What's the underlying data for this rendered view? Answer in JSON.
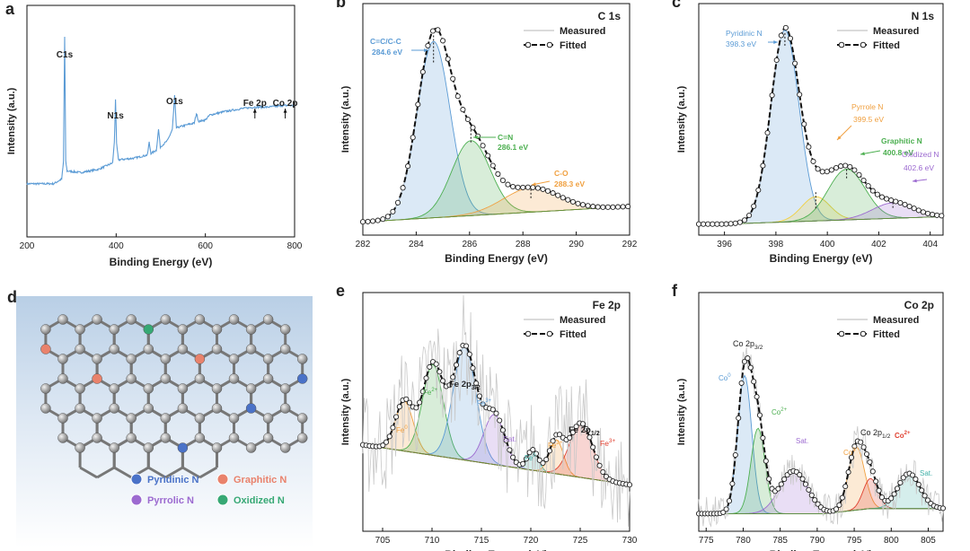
{
  "chart_data": [
    {
      "id": "a",
      "panel_label": "a",
      "type": "line",
      "title": "",
      "xlabel": "Binding Energy (eV)",
      "ylabel": "Intensity (a.u.)",
      "xlim": [
        200,
        800
      ],
      "reverse_x": false,
      "xticks": [
        200,
        400,
        600,
        800
      ],
      "annotations": [
        "C1s",
        "N1s",
        "O1s",
        "Fe 2p",
        "Co 2p"
      ],
      "colors": {
        "line": "#5b9bd5"
      },
      "series": [
        {
          "values": [
            [
              200,
              0.08
            ],
            [
              260,
              0.08
            ],
            [
              278,
              0.11
            ],
            [
              282,
              0.22
            ],
            [
              284.5,
              1.0
            ],
            [
              287,
              0.22
            ],
            [
              290,
              0.16
            ],
            [
              320,
              0.15
            ],
            [
              360,
              0.17
            ],
            [
              392,
              0.21
            ],
            [
              396,
              0.34
            ],
            [
              398.5,
              0.61
            ],
            [
              401,
              0.33
            ],
            [
              405,
              0.23
            ],
            [
              440,
              0.24
            ],
            [
              470,
              0.26
            ],
            [
              474,
              0.34
            ],
            [
              478,
              0.27
            ],
            [
              490,
              0.29
            ],
            [
              495,
              0.42
            ],
            [
              499,
              0.31
            ],
            [
              515,
              0.35
            ],
            [
              526,
              0.42
            ],
            [
              531,
              0.63
            ],
            [
              535,
              0.43
            ],
            [
              560,
              0.45
            ],
            [
              575,
              0.46
            ],
            [
              580,
              0.52
            ],
            [
              585,
              0.47
            ],
            [
              600,
              0.48
            ],
            [
              610,
              0.51
            ],
            [
              640,
              0.53
            ],
            [
              680,
              0.55
            ],
            [
              711,
              0.56
            ],
            [
              740,
              0.56
            ],
            [
              779,
              0.57
            ],
            [
              800,
              0.57
            ]
          ]
        }
      ]
    },
    {
      "id": "b",
      "panel_label": "b",
      "type": "line",
      "title": "C 1s",
      "xlabel": "Binding Energy (eV)",
      "ylabel": "Intensity (a.u.)",
      "xlim": [
        282,
        292
      ],
      "xticks": [
        282,
        284,
        286,
        288,
        290,
        292
      ],
      "legend": [
        "Measured",
        "Fitted"
      ],
      "legend_position": "top-right",
      "peaks": [
        {
          "name": "C=C/C-C",
          "center": 284.6,
          "label": "284.6 eV",
          "color": "#5b9bd5"
        },
        {
          "name": "C=N",
          "center": 286.1,
          "label": "286.1 eV",
          "color": "#4caf50"
        },
        {
          "name": "C-O",
          "center": 288.3,
          "label": "288.3 eV",
          "color": "#f0a040"
        }
      ]
    },
    {
      "id": "c",
      "panel_label": "c",
      "type": "line",
      "title": "N 1s",
      "xlabel": "Binding Energy (eV)",
      "ylabel": "Intensity (a.u.)",
      "xlim": [
        395,
        404.5
      ],
      "xticks": [
        396,
        398,
        400,
        402,
        404
      ],
      "legend": [
        "Measured",
        "Fitted"
      ],
      "legend_position": "top-right",
      "peaks": [
        {
          "name": "Pyridinic N",
          "center": 398.3,
          "label": "398.3 eV",
          "color": "#5b9bd5"
        },
        {
          "name": "Pyrrole N",
          "center": 399.5,
          "label": "399.5 eV",
          "color": "#f0a040"
        },
        {
          "name": "Graphitic N",
          "center": 400.8,
          "label": "400.8 eV",
          "color": "#4caf50"
        },
        {
          "name": "Oxidized N",
          "center": 402.6,
          "label": "402.6 eV",
          "color": "#9c6ad0"
        }
      ]
    },
    {
      "id": "e",
      "panel_label": "e",
      "type": "line",
      "title": "Fe 2p",
      "xlabel": "Binding Energy (eV)",
      "ylabel": "Intensity (a.u.)",
      "xlim": [
        703,
        730
      ],
      "xticks": [
        705,
        710,
        715,
        720,
        725,
        730
      ],
      "legend": [
        "Measured",
        "Fitted"
      ],
      "legend_position": "top-right",
      "peaks": [
        {
          "name": "Fe",
          "sup": "0",
          "center": 707.2,
          "color": "#f0a040"
        },
        {
          "name": "Fe",
          "sup": "2+",
          "center": 710.1,
          "color": "#4caf50"
        },
        {
          "name": "Fe 2p",
          "sub": "3/2",
          "center": 713.2,
          "color": "#5b9bd5"
        },
        {
          "name": "Fe",
          "sup": "3+",
          "center": 713.2,
          "color": "#5b9bd5"
        },
        {
          "name": "Sat.",
          "center": 716.3,
          "color": "#9c6ad0"
        },
        {
          "name": "Fe",
          "sup": "0",
          "center": 720.2,
          "color": "#40b0a8"
        },
        {
          "name": "Fe",
          "sup": "2+",
          "center": 722.6,
          "color": "#f0a040"
        },
        {
          "name": "Fe 2p",
          "sub": "1/2",
          "center": 725.0,
          "color": "#222222"
        },
        {
          "name": "Fe",
          "sup": "3+",
          "center": 725.2,
          "color": "#e04030"
        }
      ]
    },
    {
      "id": "f",
      "panel_label": "f",
      "type": "line",
      "title": "Co 2p",
      "xlabel": "Binding Energy (eV)",
      "ylabel": "Intensity (a.u.)",
      "xlim": [
        774,
        807
      ],
      "xticks": [
        775,
        780,
        785,
        790,
        795,
        800,
        805
      ],
      "legend": [
        "Measured",
        "Fitted"
      ],
      "legend_position": "top-right",
      "peaks": [
        {
          "name": "Co 2p",
          "sub": "3/2",
          "center": 780.5,
          "color": "#222222"
        },
        {
          "name": "Co",
          "sup": "0",
          "center": 780.2,
          "color": "#5b9bd5"
        },
        {
          "name": "Co",
          "sup": "2+",
          "center": 782.0,
          "color": "#4caf50"
        },
        {
          "name": "Sat.",
          "center": 786.7,
          "color": "#9c6ad0"
        },
        {
          "name": "Co 2p",
          "sub": "1/2",
          "center": 795.6,
          "color": "#222222"
        },
        {
          "name": "Co",
          "sup": "0",
          "center": 795.3,
          "color": "#f0a040"
        },
        {
          "name": "Co",
          "sup": "2+",
          "center": 797.2,
          "color": "#e04030"
        },
        {
          "name": "Sat.",
          "center": 802.5,
          "color": "#40b0a8"
        }
      ]
    }
  ],
  "schematic": {
    "panel_label": "d",
    "legend": [
      {
        "label": "Pyridinic N",
        "color": "#4a72c8"
      },
      {
        "label": "Graphitic N",
        "color": "#e9826c"
      },
      {
        "label": "Pyrrolic N",
        "color": "#9c6ad0"
      },
      {
        "label": "Oxidized N",
        "color": "#36a874"
      }
    ]
  }
}
